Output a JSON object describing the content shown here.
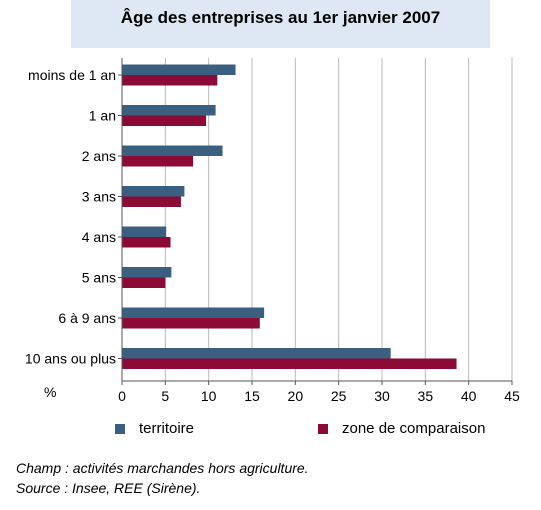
{
  "chart_data": {
    "type": "bar",
    "orientation": "horizontal",
    "title": "Âge des entreprises au 1er janvier 2007",
    "categories": [
      "moins de 1 an",
      "1 an",
      "2 ans",
      "3 ans",
      "4 ans",
      "5 ans",
      "6 à 9 ans",
      "10 ans ou plus"
    ],
    "series": [
      {
        "name": "territoire",
        "color": "#3b5f80",
        "values": [
          13.1,
          10.8,
          11.6,
          7.2,
          5.1,
          5.7,
          16.4,
          31.0
        ]
      },
      {
        "name": "zone de comparaison",
        "color": "#8b0a36",
        "values": [
          11.0,
          9.7,
          8.2,
          6.8,
          5.6,
          5.0,
          15.9,
          38.6
        ]
      }
    ],
    "xlabel": "%",
    "xlim": [
      0,
      45
    ],
    "xticks": [
      0,
      5,
      10,
      15,
      20,
      25,
      30,
      35,
      40,
      45
    ],
    "grid": true,
    "legend_position": "bottom"
  },
  "notes": {
    "champ": "Champ : activités marchandes hors agriculture.",
    "source": "Source : Insee, REE (Sirène)."
  }
}
